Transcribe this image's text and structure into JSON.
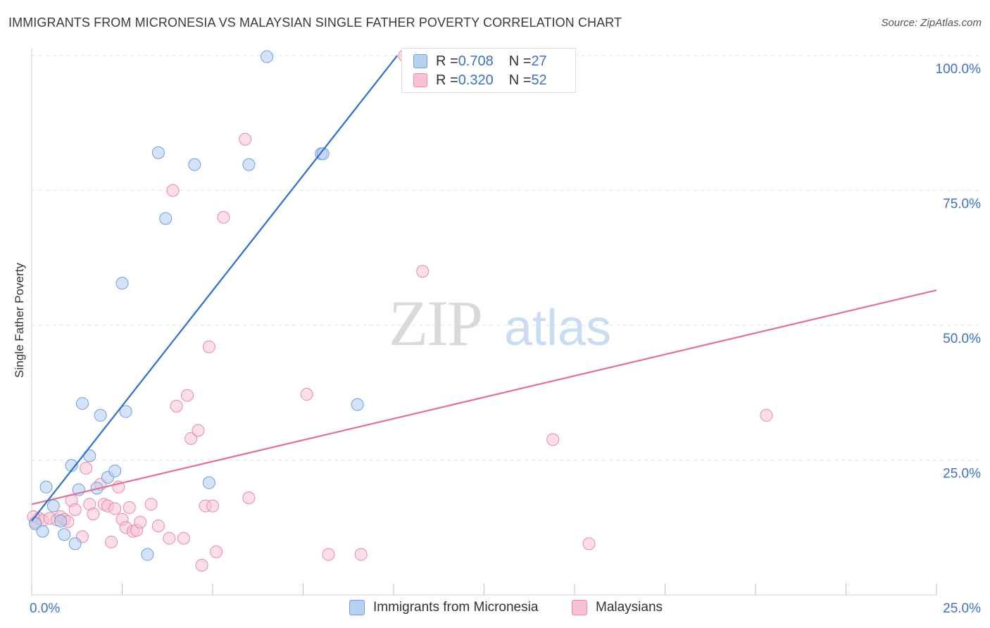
{
  "header": {
    "title": "IMMIGRANTS FROM MICRONESIA VS MALAYSIAN SINGLE FATHER POVERTY CORRELATION CHART",
    "source": "Source: ZipAtlas.com"
  },
  "watermark": {
    "zip": "ZIP",
    "atlas": "atlas"
  },
  "legend": {
    "rows": [
      {
        "r_label": "R = ",
        "r_value": "0.708",
        "n_label": "N = ",
        "n_value": "27"
      },
      {
        "r_label": "R = ",
        "r_value": "0.320",
        "n_label": "N = ",
        "n_value": "52"
      }
    ]
  },
  "bottom_legend": {
    "series1": "Immigrants from Micronesia",
    "series2": "Malaysians"
  },
  "colors": {
    "blue_fill": "#b7d1f2",
    "blue_stroke": "#6d9fdc",
    "blue_line": "#2d6fcc",
    "pink_fill": "#f7c3d3",
    "pink_stroke": "#e58aa8",
    "pink_line": "#e0709a",
    "tick_label": "#3b72c4"
  },
  "chart_data": {
    "type": "scatter",
    "title": "IMMIGRANTS FROM MICRONESIA VS MALAYSIAN SINGLE FATHER POVERTY CORRELATION CHART",
    "xlabel": "",
    "ylabel": "Single Father Poverty",
    "xlim": [
      0,
      25
    ],
    "ylim": [
      0,
      100
    ],
    "x_tick_labels": [
      "0.0%",
      "25.0%"
    ],
    "y_tick_labels": [
      "25.0%",
      "50.0%",
      "75.0%",
      "100.0%"
    ],
    "y_ticks": [
      25,
      50,
      75,
      100
    ],
    "grid": true,
    "legend_position": "top-center",
    "series": [
      {
        "name": "Immigrants from Micronesia",
        "trend": {
          "x": [
            0.0,
            10.1
          ],
          "y": [
            13.7,
            100.0
          ]
        },
        "points": [
          [
            0.1,
            13.2
          ],
          [
            0.3,
            11.8
          ],
          [
            0.4,
            20.0
          ],
          [
            0.6,
            16.5
          ],
          [
            0.8,
            13.7
          ],
          [
            0.9,
            11.2
          ],
          [
            1.1,
            24.0
          ],
          [
            1.2,
            9.5
          ],
          [
            1.3,
            19.5
          ],
          [
            1.4,
            35.5
          ],
          [
            1.6,
            25.8
          ],
          [
            1.8,
            19.8
          ],
          [
            1.9,
            33.3
          ],
          [
            2.1,
            21.8
          ],
          [
            2.3,
            23.0
          ],
          [
            2.5,
            57.8
          ],
          [
            2.6,
            34.0
          ],
          [
            3.2,
            7.5
          ],
          [
            3.5,
            82.0
          ],
          [
            3.7,
            69.8
          ],
          [
            4.5,
            79.8
          ],
          [
            4.9,
            20.8
          ],
          [
            6.0,
            79.8
          ],
          [
            6.5,
            99.8
          ],
          [
            8.0,
            81.8
          ],
          [
            8.05,
            81.8
          ],
          [
            9.0,
            35.3
          ]
        ]
      },
      {
        "name": "Malaysians",
        "trend": {
          "x": [
            0.0,
            25.0
          ],
          "y": [
            16.8,
            56.5
          ]
        },
        "points": [
          [
            0.1,
            13.5
          ],
          [
            0.2,
            14.2
          ],
          [
            0.3,
            13.8
          ],
          [
            0.5,
            14.2
          ],
          [
            0.7,
            13.9
          ],
          [
            0.8,
            14.5
          ],
          [
            0.9,
            14.0
          ],
          [
            1.0,
            13.6
          ],
          [
            1.1,
            17.5
          ],
          [
            1.2,
            15.8
          ],
          [
            1.4,
            10.8
          ],
          [
            1.5,
            23.5
          ],
          [
            1.6,
            16.8
          ],
          [
            1.7,
            15.0
          ],
          [
            1.9,
            20.5
          ],
          [
            2.0,
            16.8
          ],
          [
            2.1,
            16.5
          ],
          [
            2.2,
            9.8
          ],
          [
            2.3,
            16.0
          ],
          [
            2.4,
            20.0
          ],
          [
            2.5,
            14.0
          ],
          [
            2.6,
            12.5
          ],
          [
            2.7,
            16.2
          ],
          [
            2.8,
            11.8
          ],
          [
            2.9,
            12.0
          ],
          [
            3.0,
            13.5
          ],
          [
            3.3,
            16.8
          ],
          [
            3.5,
            12.8
          ],
          [
            3.8,
            10.5
          ],
          [
            3.9,
            75.0
          ],
          [
            4.0,
            35.0
          ],
          [
            4.2,
            10.5
          ],
          [
            4.3,
            37.0
          ],
          [
            4.4,
            29.0
          ],
          [
            4.6,
            30.5
          ],
          [
            4.7,
            5.5
          ],
          [
            4.8,
            16.5
          ],
          [
            4.9,
            46.0
          ],
          [
            5.0,
            16.5
          ],
          [
            5.1,
            8.0
          ],
          [
            5.3,
            70.0
          ],
          [
            5.9,
            84.5
          ],
          [
            6.0,
            18.0
          ],
          [
            7.6,
            37.2
          ],
          [
            8.2,
            7.5
          ],
          [
            9.1,
            7.5
          ],
          [
            10.3,
            100.0
          ],
          [
            10.8,
            60.0
          ],
          [
            14.4,
            28.8
          ],
          [
            15.4,
            9.5
          ],
          [
            20.3,
            33.3
          ],
          [
            0.05,
            14.5
          ]
        ]
      }
    ]
  }
}
